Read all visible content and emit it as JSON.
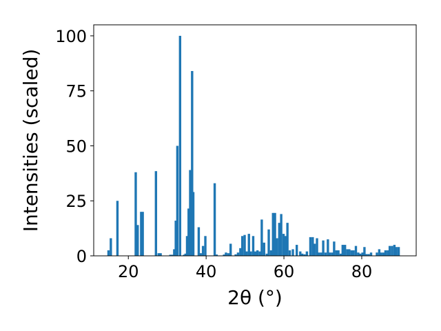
{
  "chart_data": {
    "type": "bar",
    "xlabel": "2θ (°)",
    "ylabel": "Intensities (scaled)",
    "xlim": [
      11.1,
      94.0
    ],
    "ylim": [
      0,
      105
    ],
    "xticks": [
      "20",
      "40",
      "60",
      "80"
    ],
    "xtick_values": [
      20,
      40,
      60,
      80
    ],
    "yticks": [
      "0",
      "25",
      "50",
      "75",
      "100"
    ],
    "ytick_values": [
      0,
      25,
      50,
      75,
      100
    ],
    "bar_width": 0.6,
    "bar_color": "#1f77b4",
    "x": [
      14.9,
      15.5,
      17.2,
      21.9,
      22.4,
      23.3,
      23.7,
      27.1,
      27.8,
      28.3,
      30.8,
      31.3,
      31.8,
      32.2,
      32.6,
      33.3,
      34.3,
      34.7,
      35.1,
      35.5,
      35.9,
      36.4,
      36.7,
      38.1,
      38.6,
      39.2,
      39.8,
      42.2,
      42.7,
      44.6,
      45.1,
      45.7,
      46.3,
      47.6,
      48.2,
      48.8,
      49.3,
      49.9,
      50.4,
      51.0,
      51.5,
      52.1,
      52.6,
      53.2,
      53.8,
      54.3,
      54.9,
      55.6,
      56.1,
      56.7,
      57.2,
      57.7,
      58.2,
      58.8,
      59.3,
      59.9,
      60.4,
      60.9,
      61.5,
      62.3,
      63.3,
      64.2,
      64.7,
      65.3,
      65.9,
      66.8,
      67.4,
      67.9,
      68.5,
      69.0,
      69.6,
      70.1,
      70.7,
      71.3,
      71.8,
      72.4,
      72.9,
      73.5,
      74.0,
      74.6,
      75.1,
      75.7,
      76.3,
      76.8,
      77.4,
      77.9,
      78.5,
      79.1,
      79.6,
      80.2,
      80.7,
      81.2,
      81.8,
      82.4,
      83.9,
      84.5,
      85.0,
      85.6,
      86.1,
      86.7,
      87.2,
      87.8,
      88.4,
      88.9,
      89.5
    ],
    "values": [
      2.5,
      8,
      25,
      38,
      14,
      20,
      20,
      38.5,
      1.2,
      1.2,
      0.5,
      0.5,
      3,
      16,
      50,
      100,
      0.5,
      1,
      9,
      21.5,
      39,
      84,
      29,
      13,
      1.2,
      4.5,
      9,
      33,
      0.6,
      0.6,
      1.5,
      1.2,
      5.5,
      0.7,
      1.5,
      3.5,
      9,
      9.5,
      2,
      10,
      2,
      9,
      2,
      2.5,
      2,
      16.5,
      6,
      1,
      12,
      2.5,
      19.5,
      19.5,
      8,
      15,
      19,
      10,
      9,
      15,
      2.5,
      3,
      5,
      2,
      1,
      0.7,
      2,
      8.5,
      8.5,
      5.5,
      8,
      1.5,
      1.5,
      7,
      1.5,
      7.5,
      1.5,
      1.5,
      6.5,
      2.5,
      2.5,
      1,
      5,
      5,
      3,
      3,
      2.5,
      2.5,
      4.5,
      1.5,
      1,
      1.5,
      4,
      0.8,
      0.8,
      1.5,
      1.5,
      3,
      1.5,
      1.5,
      2.5,
      2.5,
      4.5,
      4.5,
      5,
      4,
      4
    ]
  }
}
